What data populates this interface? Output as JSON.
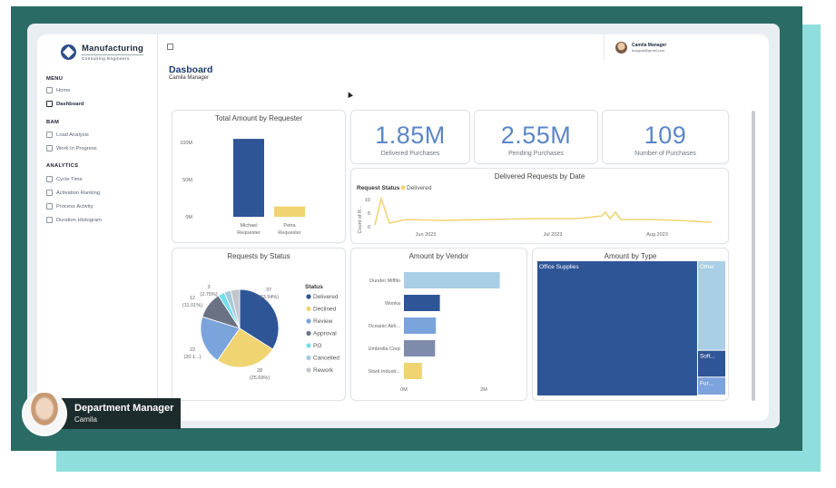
{
  "app": {
    "logo_title": "Manufacturing",
    "logo_subtitle": "Consulting Engineers"
  },
  "sidebar": {
    "sections": [
      {
        "heading": "MENU",
        "items": [
          {
            "label": "Home",
            "icon": "home-icon"
          },
          {
            "label": "Dashboard",
            "icon": "dashboard-icon",
            "active": true
          }
        ]
      },
      {
        "heading": "BAM",
        "items": [
          {
            "label": "Load Analysis",
            "icon": "chart-icon"
          },
          {
            "label": "Work In Progress",
            "icon": "progress-icon"
          }
        ]
      },
      {
        "heading": "ANALYTICS",
        "items": [
          {
            "label": "Cycle Time",
            "icon": "clock-icon"
          },
          {
            "label": "Activation Ranking",
            "icon": "ranking-icon"
          },
          {
            "label": "Process Activity",
            "icon": "activity-icon"
          },
          {
            "label": "Duration Histogram",
            "icon": "histogram-icon"
          }
        ]
      }
    ]
  },
  "user": {
    "name": "Camila Manager",
    "email": "bosgoal@gmail.com"
  },
  "page": {
    "title": "Dasboard",
    "subtitle": "Camila Manager"
  },
  "kpis": [
    {
      "value": "1.85M",
      "label": "Delivered Purchases"
    },
    {
      "value": "2.55M",
      "label": "Pending Purchases"
    },
    {
      "value": "109",
      "label": "Number of Purchases"
    }
  ],
  "overlay": {
    "title": "Department Manager",
    "name": "Camila"
  },
  "colors": {
    "dark_blue": "#2e5596",
    "yellow": "#f0d472",
    "light_blue": "#a9cfe6",
    "mid_blue": "#7ba3dc",
    "slate": "#7e8bab",
    "teal_dark": "#2b6b66",
    "teal_light": "#8fdede"
  },
  "chart_data": [
    {
      "type": "bar",
      "title": "Total Amount by Requester",
      "categories": [
        "Michael Requester",
        "Petra Requester"
      ],
      "values": [
        105,
        14
      ],
      "unit": "M",
      "yticks": [
        "100M",
        "50M",
        "0M"
      ],
      "ylim": [
        0,
        110
      ]
    },
    {
      "type": "line",
      "title": "Delivered Requests by Date",
      "legend_title": "Request Status",
      "series": [
        {
          "name": "Delivered"
        }
      ],
      "ylabel": "Count of R...",
      "yticks": [
        "10",
        "5",
        "0"
      ],
      "xticks": [
        "Jun 2023",
        "Jul 2023",
        "Aug 2023"
      ],
      "ylim": [
        0,
        10
      ]
    },
    {
      "type": "pie",
      "title": "Requests by Status",
      "legend_title": "Status",
      "slices": [
        {
          "label": "Delivered",
          "value": 37,
          "pct": "(33.94%)",
          "color": "#2e5596"
        },
        {
          "label": "Declined",
          "value": 28,
          "pct": "(25.69%)",
          "color": "#f0d472"
        },
        {
          "label": "Review",
          "value": 22,
          "pct": "(20.1...)",
          "color": "#7ba3dc"
        },
        {
          "label": "Approval",
          "value": 12,
          "pct": "(11.01%)",
          "color": "#6a7384"
        },
        {
          "label": "PO",
          "value": 3,
          "pct": "(2.75%)",
          "color": "#73e0ea"
        },
        {
          "label": "Cancelled",
          "value": 3,
          "pct": "",
          "color": "#a8c9dd"
        },
        {
          "label": "Rework",
          "value": 4,
          "pct": "",
          "color": "#c3c6cc"
        }
      ]
    },
    {
      "type": "bar",
      "orientation": "horizontal",
      "title": "Amount by Vendor",
      "categories": [
        "Dunder Mifflin",
        "Wonka",
        "Oceanic Airli...",
        "Umbrella Corp",
        "Stark Industr..."
      ],
      "values": [
        2.4,
        0.9,
        0.8,
        0.78,
        0.45
      ],
      "colors": [
        "#a9cfe6",
        "#2e5596",
        "#7ba3dc",
        "#7e8bab",
        "#f0d472"
      ],
      "xticks": [
        "0M",
        "2M"
      ],
      "xlim": [
        0,
        2.8
      ]
    },
    {
      "type": "treemap",
      "title": "Amount by Type",
      "items": [
        {
          "label": "Office Supplies",
          "value": 85,
          "color": "#2e5596"
        },
        {
          "label": "Other",
          "value": 10,
          "color": "#a9cfe6"
        },
        {
          "label": "Soft...",
          "value": 3,
          "color": "#2e5596"
        },
        {
          "label": "Fur...",
          "value": 2,
          "color": "#7ba3dc"
        }
      ]
    }
  ]
}
